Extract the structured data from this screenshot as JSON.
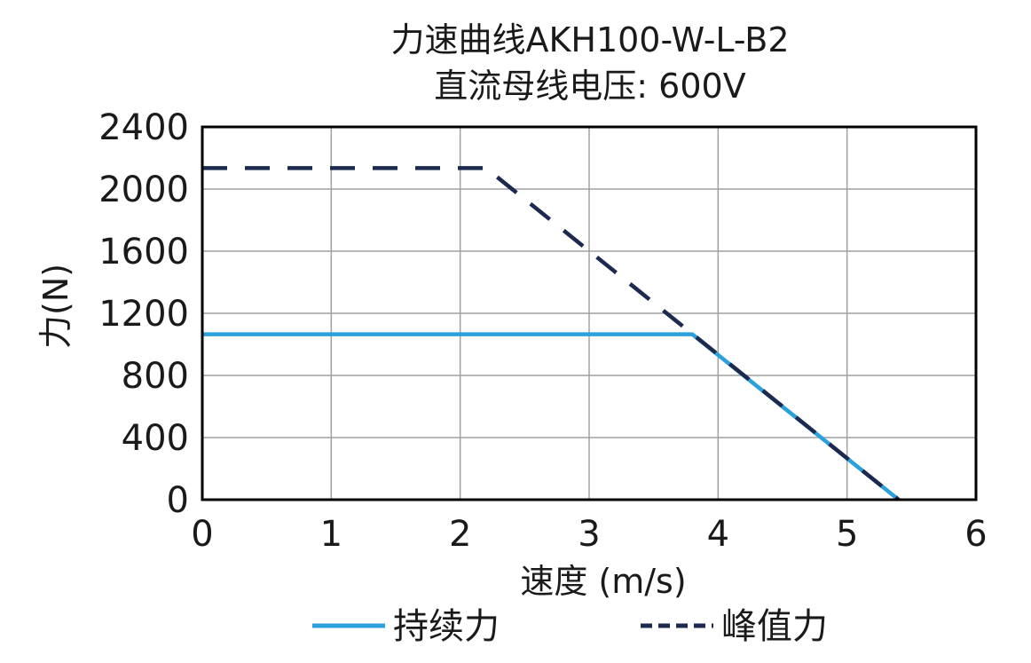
{
  "chart_data": {
    "type": "line",
    "title": "力速曲线AKH100-W-L-B2",
    "subtitle": "直流母线电压: 600V",
    "xlabel": "速度 (m/s)",
    "ylabel": "力(N)",
    "xlim": [
      0,
      6
    ],
    "ylim": [
      0,
      2400
    ],
    "xticks": [
      0,
      1,
      2,
      3,
      4,
      5,
      6
    ],
    "yticks": [
      0,
      400,
      800,
      1200,
      1600,
      2000,
      2400
    ],
    "grid": true,
    "legend_position": "bottom",
    "series": [
      {
        "name": "持续力",
        "color": "#2aa0dc",
        "style": "solid",
        "x": [
          0,
          3.8,
          5.4
        ],
        "y": [
          1065,
          1065,
          0
        ]
      },
      {
        "name": "峰值力",
        "color": "#1b2a4e",
        "style": "dashed",
        "x": [
          0,
          2.2,
          5.4
        ],
        "y": [
          2135,
          2135,
          0
        ]
      }
    ]
  }
}
